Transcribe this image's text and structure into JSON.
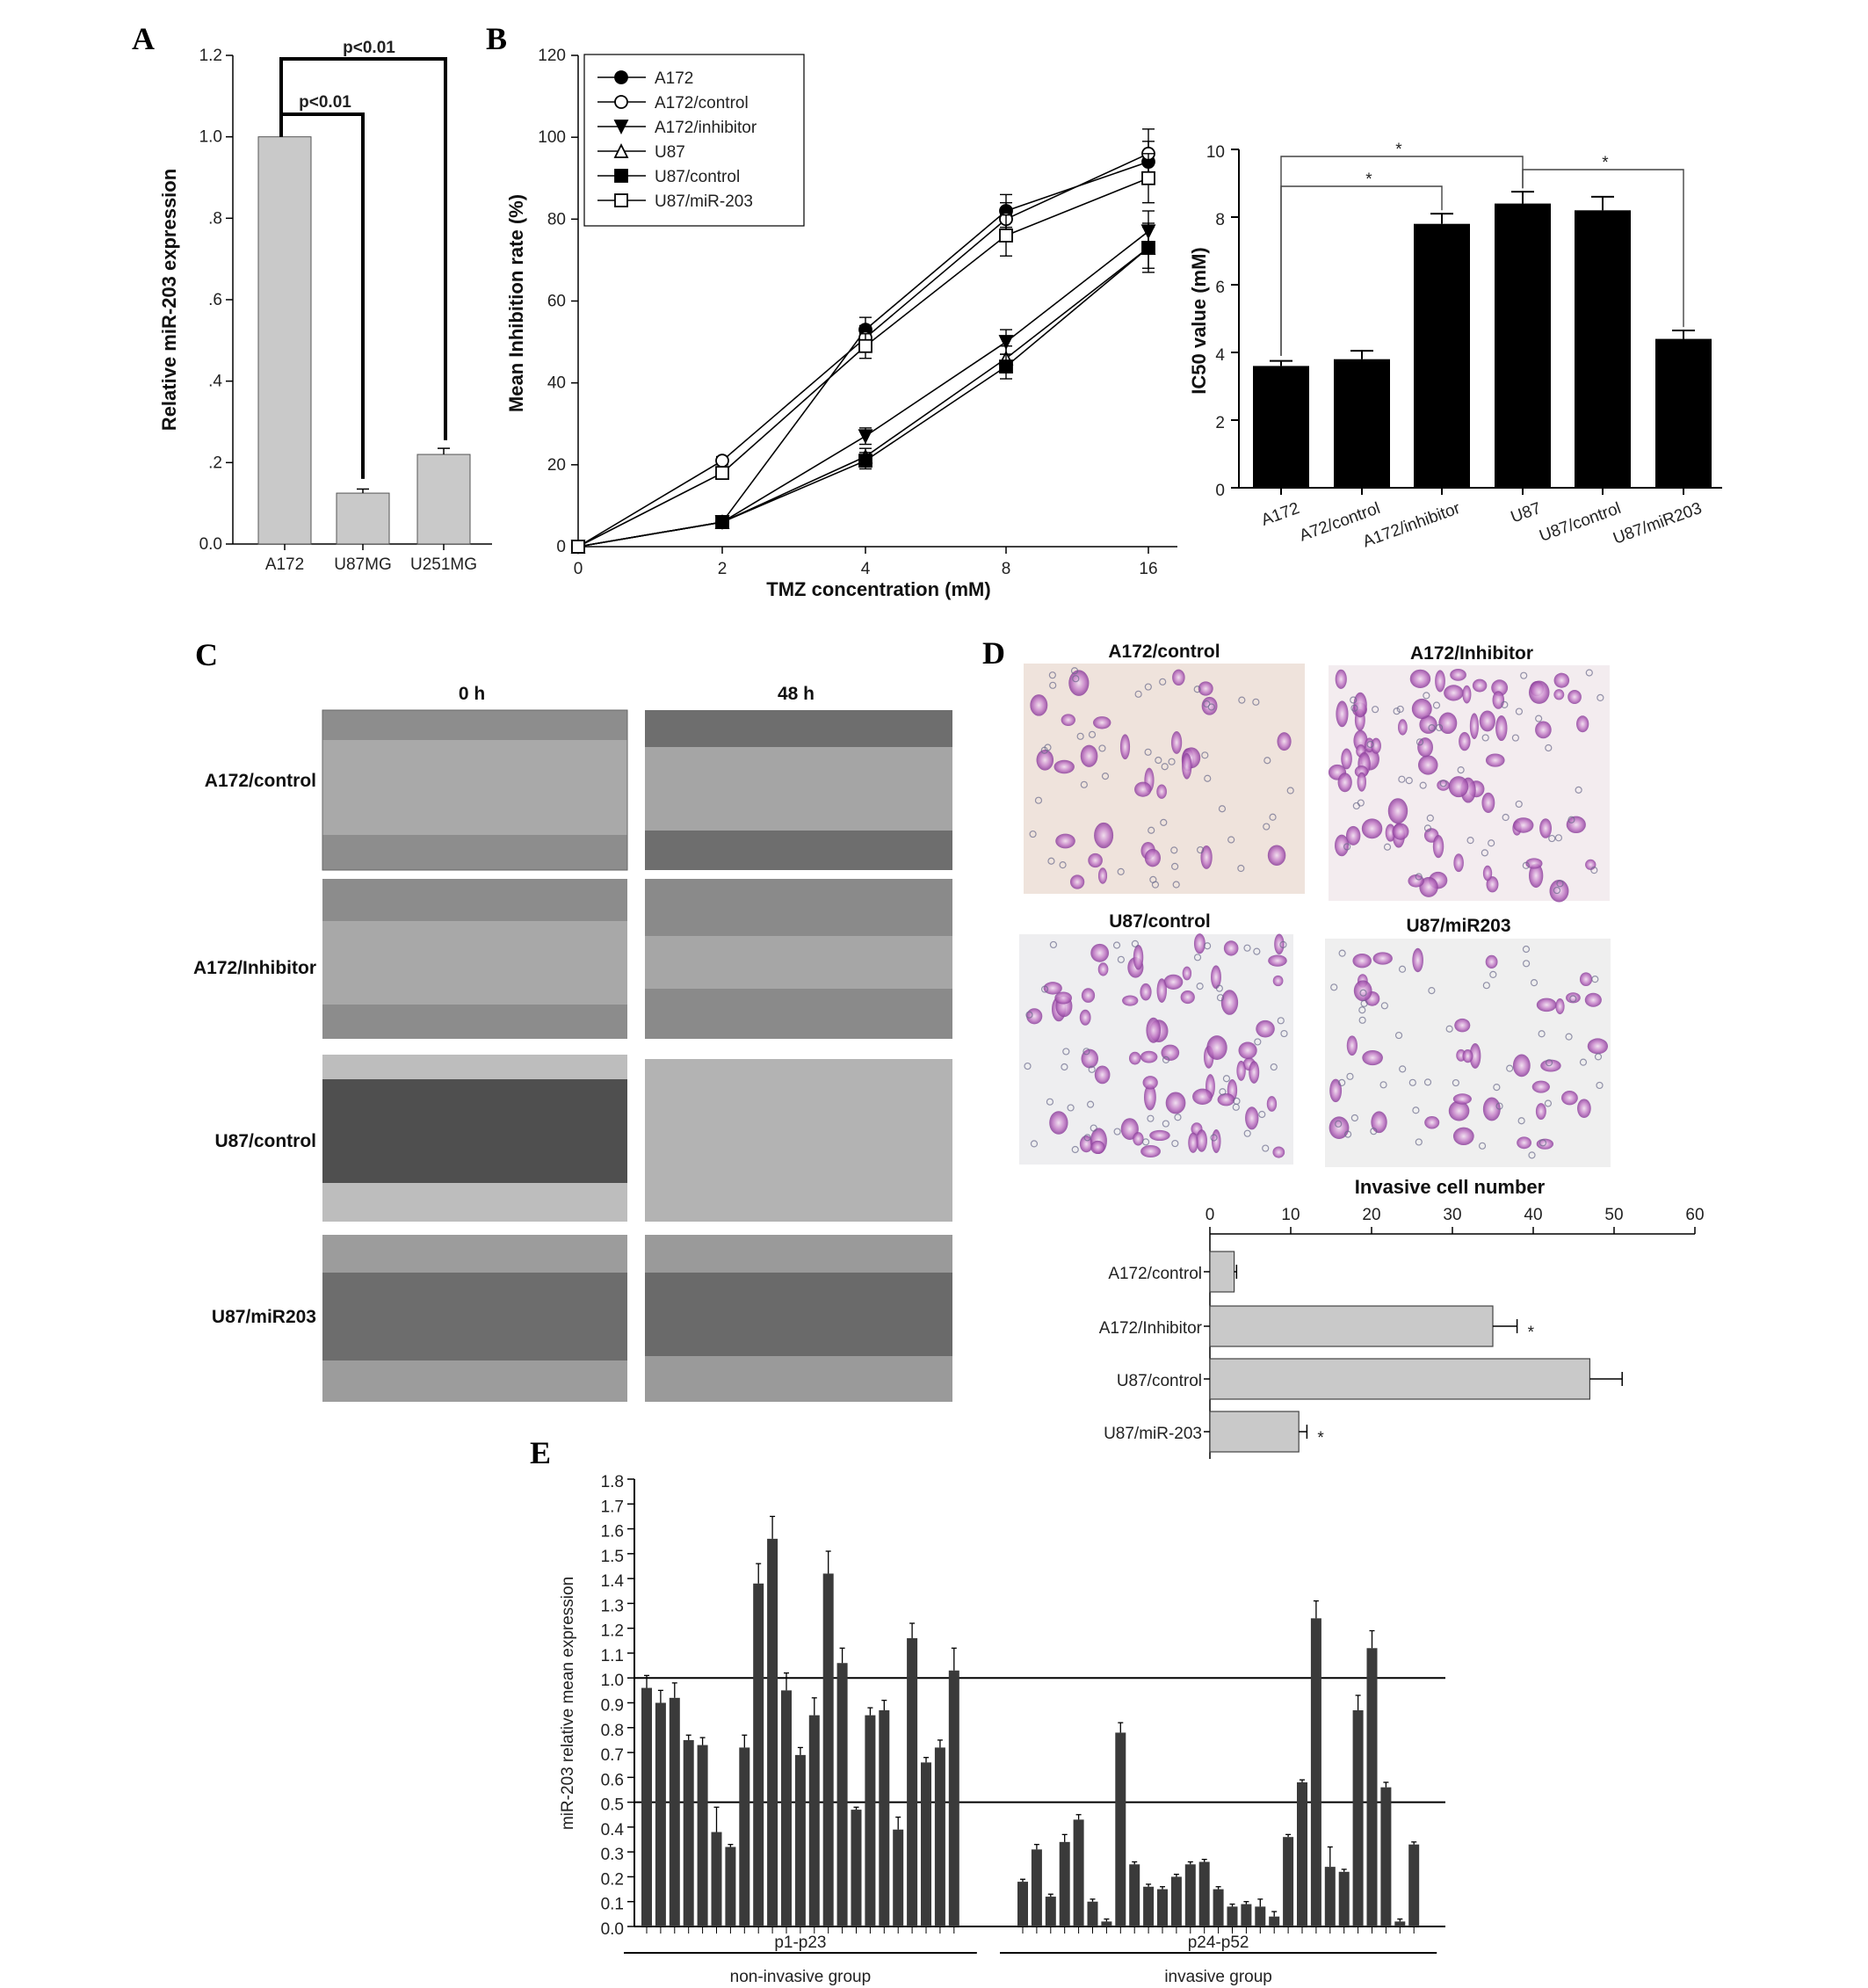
{
  "colors": {
    "gray_bar": "#c9c9c9",
    "black_bar": "#000000",
    "dark_bar": "#3a3a3a",
    "stain": "#b55cc0"
  },
  "panels": {
    "A": {
      "letter": "A",
      "sig1": "p<0.01",
      "sig2": "p<0.01"
    },
    "B": {
      "letter": "B",
      "ic50_star": "*"
    },
    "C": {
      "letter": "C",
      "col_0h": "0 h",
      "col_48h": "48 h",
      "rows": [
        "A172/control",
        "A172/Inhibitor",
        "U87/control",
        "U87/miR203"
      ]
    },
    "D": {
      "letter": "D",
      "images": [
        "A172/control",
        "A172/Inhibitor",
        "U87/control",
        "U87/miR203"
      ]
    },
    "E": {
      "letter": "E",
      "hline_upper": "1.0",
      "hline_lower": "0.5"
    }
  },
  "chart_data": [
    {
      "id": "A",
      "type": "bar",
      "ylabel": "Relative miR-203 expression",
      "categories": [
        "A172",
        "U87MG",
        "U251MG"
      ],
      "values": [
        1.0,
        0.125,
        0.22
      ],
      "errors": [
        0,
        0.01,
        0.015
      ],
      "ylim": [
        0,
        1.2
      ],
      "yticks": [
        0,
        0.2,
        0.4,
        0.6,
        0.8,
        1.0,
        1.2
      ],
      "ytick_labels": [
        "0.0",
        ".2",
        ".4",
        ".6",
        ".8",
        "1.0",
        "1.2"
      ],
      "annotations": [
        "p<0.01",
        "p<0.01"
      ]
    },
    {
      "id": "B1",
      "type": "line",
      "xlabel": "TMZ concentration (mM)",
      "ylabel": "Mean Inhibition rate (%)",
      "x": [
        "0",
        "2",
        "4",
        "8",
        "16"
      ],
      "ylim": [
        0,
        120
      ],
      "yticks": [
        0,
        20,
        40,
        60,
        80,
        100,
        120
      ],
      "legend_position": "top-left",
      "series": [
        {
          "name": "A172",
          "marker": "filled-circle",
          "values": [
            0,
            6,
            53,
            82,
            94
          ],
          "errors": [
            0,
            1,
            3,
            4,
            5
          ]
        },
        {
          "name": "A172/control",
          "marker": "open-circle",
          "values": [
            0,
            21,
            51,
            80,
            96
          ],
          "errors": [
            0,
            1,
            3,
            4,
            6
          ]
        },
        {
          "name": "A172/inhibitor",
          "marker": "filled-triangle-down",
          "values": [
            0,
            6,
            27,
            50,
            77
          ],
          "errors": [
            0,
            1,
            2,
            3,
            5
          ]
        },
        {
          "name": "U87",
          "marker": "open-triangle-up",
          "values": [
            0,
            6,
            22,
            46,
            73
          ],
          "errors": [
            0,
            1,
            2,
            3,
            5
          ]
        },
        {
          "name": "U87/control",
          "marker": "filled-square",
          "values": [
            0,
            6,
            21,
            44,
            73
          ],
          "errors": [
            0,
            1,
            2,
            3,
            6
          ]
        },
        {
          "name": "U87/miR-203",
          "marker": "open-square",
          "values": [
            0,
            18,
            49,
            76,
            90
          ],
          "errors": [
            0,
            1,
            3,
            5,
            6
          ]
        }
      ]
    },
    {
      "id": "B2",
      "type": "bar",
      "ylabel": "IC50 value (mM)",
      "categories": [
        "A172",
        "A72/control",
        "A172/inhibitor",
        "U87",
        "U87/control",
        "U87/miR203"
      ],
      "values": [
        3.6,
        3.8,
        7.8,
        8.4,
        8.2,
        4.4
      ],
      "errors": [
        0.15,
        0.25,
        0.3,
        0.35,
        0.4,
        0.25
      ],
      "ylim": [
        0,
        10
      ],
      "yticks": [
        0,
        2,
        4,
        6,
        8,
        10
      ],
      "annotations": [
        "*",
        "*",
        "*"
      ]
    },
    {
      "id": "D",
      "type": "bar",
      "xlabel": "Invasive cell number",
      "categories": [
        "A172/control",
        "A172/Inhibitor",
        "U87/control",
        "U87/miR-203"
      ],
      "values": [
        3,
        35,
        47,
        11
      ],
      "errors": [
        0.3,
        3,
        4,
        1
      ],
      "significant": [
        "",
        "*",
        "",
        "*"
      ],
      "xlim": [
        0,
        60
      ],
      "xticks": [
        0,
        10,
        20,
        30,
        40,
        50,
        60
      ]
    },
    {
      "id": "E",
      "type": "bar",
      "ylabel": "miR-203 relative mean expression",
      "ylim": [
        0,
        1.8
      ],
      "yticks": [
        "0.0",
        "0.1",
        "0.2",
        "0.3",
        "0.4",
        "0.5",
        "0.6",
        "0.7",
        "0.8",
        "0.9",
        "1.0",
        "1.1",
        "1.2",
        "1.3",
        "1.4",
        "1.5",
        "1.6",
        "1.7",
        "1.8"
      ],
      "reference_lines": [
        1.0,
        0.5
      ],
      "groups": [
        {
          "range_label": "p1-p23",
          "name": "non-invasive group",
          "values": [
            0.96,
            0.9,
            0.92,
            0.75,
            0.73,
            0.38,
            0.32,
            0.72,
            1.38,
            1.56,
            0.95,
            0.69,
            0.85,
            1.42,
            1.06,
            0.47,
            0.85,
            0.87,
            0.39,
            1.16,
            0.66,
            0.72,
            1.03
          ],
          "errors": [
            0.05,
            0.05,
            0.06,
            0.02,
            0.03,
            0.1,
            0.01,
            0.05,
            0.08,
            0.09,
            0.07,
            0.03,
            0.07,
            0.09,
            0.06,
            0.01,
            0.03,
            0.04,
            0.05,
            0.06,
            0.02,
            0.03,
            0.09
          ]
        },
        {
          "range_label": "p24-p52",
          "name": "invasive group",
          "values": [
            0.18,
            0.31,
            0.12,
            0.34,
            0.43,
            0.1,
            0.02,
            0.78,
            0.25,
            0.16,
            0.15,
            0.2,
            0.25,
            0.26,
            0.15,
            0.08,
            0.09,
            0.08,
            0.04,
            0.36,
            0.58,
            1.24,
            0.24,
            0.22,
            0.87,
            1.12,
            0.56,
            0.02,
            0.33
          ],
          "errors": [
            0.01,
            0.02,
            0.01,
            0.03,
            0.02,
            0.01,
            0.01,
            0.04,
            0.01,
            0.01,
            0.01,
            0.01,
            0.01,
            0.01,
            0.01,
            0.01,
            0.01,
            0.03,
            0.02,
            0.01,
            0.01,
            0.07,
            0.08,
            0.01,
            0.06,
            0.07,
            0.02,
            0.01,
            0.01
          ]
        }
      ]
    }
  ]
}
